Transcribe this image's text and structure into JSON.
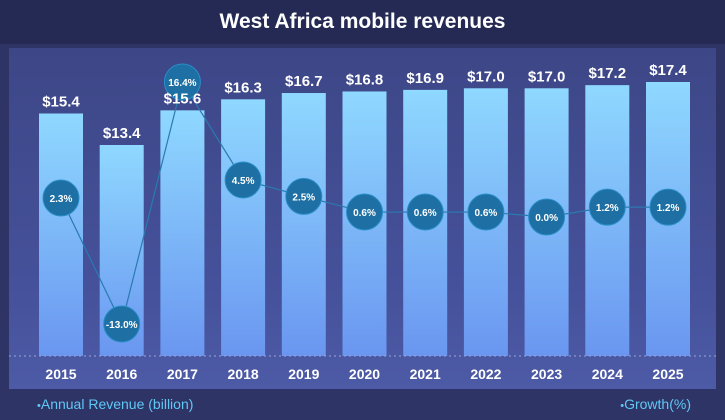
{
  "chart_data": {
    "type": "bar",
    "title": "West Africa mobile revenues",
    "categories": [
      "2015",
      "2016",
      "2017",
      "2018",
      "2019",
      "2020",
      "2021",
      "2022",
      "2023",
      "2024",
      "2025"
    ],
    "series": [
      {
        "name": "Annual Revenue (billion)",
        "values": [
          15.4,
          13.4,
          15.6,
          16.3,
          16.7,
          16.8,
          16.9,
          17.0,
          17.0,
          17.2,
          17.4
        ],
        "labels": [
          "$15.4",
          "$13.4",
          "$15.6",
          "$16.3",
          "$16.7",
          "$16.8",
          "$16.9",
          "$17.0",
          "$17.0",
          "$17.2",
          "$17.4"
        ],
        "color": "#7fc8fb"
      },
      {
        "name": "Growth(%)",
        "type": "line",
        "values": [
          2.3,
          -13.0,
          16.4,
          4.5,
          2.5,
          0.6,
          0.6,
          0.6,
          0.0,
          1.2,
          1.2
        ],
        "labels": [
          "2.3%",
          "-13.0%",
          "16.4%",
          "4.5%",
          "2.5%",
          "0.6%",
          "0.6%",
          "0.6%",
          "0.0%",
          "1.2%",
          "1.2%"
        ],
        "color": "#1e6fa3"
      }
    ],
    "ylim_revenue": [
      0,
      18.2
    ],
    "ylim_growth": [
      -14,
      18
    ],
    "legend": {
      "left": "Annual Revenue (billion)",
      "right": "Growth(%)",
      "bullet": "•"
    }
  }
}
